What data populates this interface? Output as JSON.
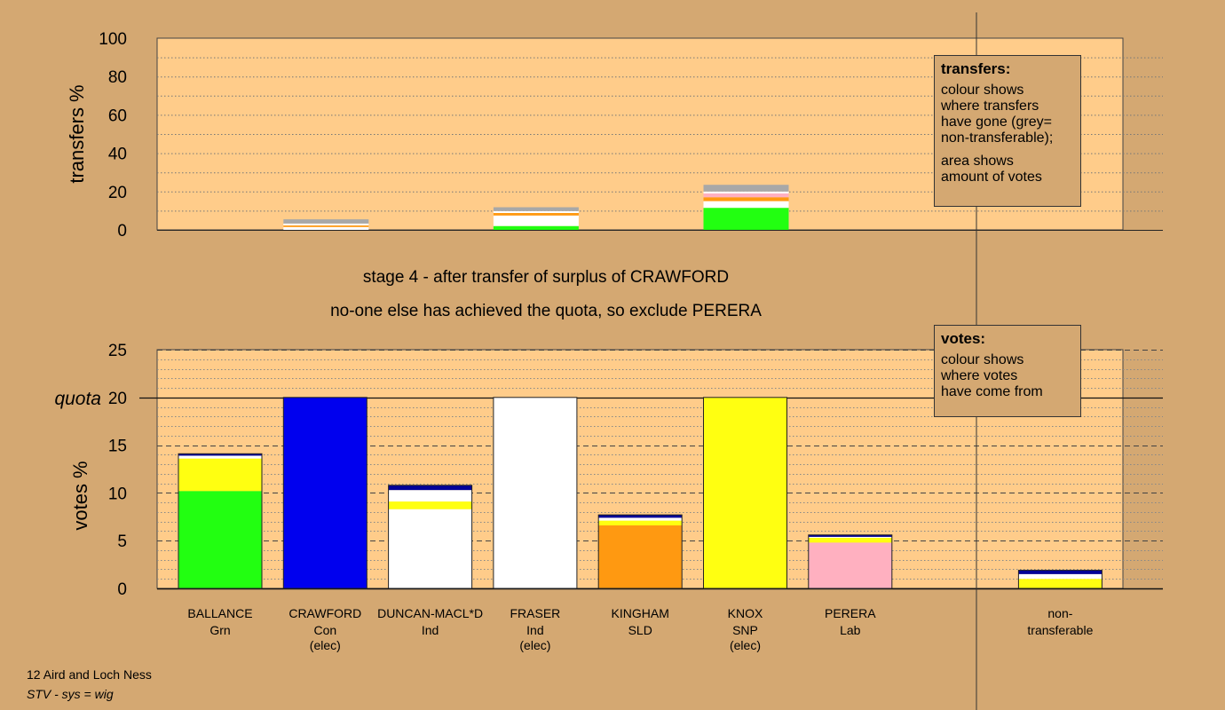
{
  "chart_data": {
    "type": "bar",
    "stage_line1": "stage 4 - after transfer of surplus of CRAWFORD",
    "stage_line2": "no-one else has achieved the quota, so exclude PERERA",
    "colors": {
      "background": "#d4a872",
      "plot": "#ffcc8a",
      "green": "#22ff11",
      "blue": "#0000ee",
      "white": "#ffffff",
      "yellow": "#ffff11",
      "orange": "#ff9911",
      "pink": "#ffb0c0",
      "navy": "#000099",
      "grey": "#a8a8a8"
    },
    "transfers": {
      "ylabel": "transfers %",
      "ylim": [
        0,
        100
      ],
      "yticks": [
        0,
        20,
        40,
        60,
        80,
        100
      ],
      "bars": [
        {
          "slot": 1,
          "segments": [
            {
              "color": "white",
              "value": 1.5
            },
            {
              "color": "orange",
              "value": 0.8
            },
            {
              "color": "white",
              "value": 1.0
            },
            {
              "color": "grey",
              "value": 2.2
            }
          ]
        },
        {
          "slot": 3,
          "segments": [
            {
              "color": "green",
              "value": 2.0
            },
            {
              "color": "white",
              "value": 5.5
            },
            {
              "color": "orange",
              "value": 1.3
            },
            {
              "color": "white",
              "value": 1.0
            },
            {
              "color": "grey",
              "value": 2.0
            }
          ]
        },
        {
          "slot": 5,
          "segments": [
            {
              "color": "green",
              "value": 11.5
            },
            {
              "color": "white",
              "value": 3.5
            },
            {
              "color": "orange",
              "value": 2.0
            },
            {
              "color": "pink",
              "value": 2.0
            },
            {
              "color": "white",
              "value": 1.0
            },
            {
              "color": "grey",
              "value": 3.5
            }
          ]
        }
      ]
    },
    "votes": {
      "ylabel": "votes %",
      "ylim": [
        0,
        25
      ],
      "yticks": [
        0,
        5,
        10,
        15,
        20,
        25
      ],
      "quota": 20,
      "quota_label": "quota",
      "bars": [
        {
          "name": "BALLANCE",
          "party": "Grn",
          "status": "",
          "segments": [
            {
              "color": "green",
              "value": 10.2
            },
            {
              "color": "yellow",
              "value": 3.4
            },
            {
              "color": "white",
              "value": 0.3
            },
            {
              "color": "navy",
              "value": 0.2
            }
          ]
        },
        {
          "name": "CRAWFORD",
          "party": "Con",
          "status": "(elec)",
          "segments": [
            {
              "color": "blue",
              "value": 20
            }
          ]
        },
        {
          "name": "DUNCAN-MACL*D",
          "party": "Ind",
          "status": "",
          "segments": [
            {
              "color": "white",
              "value": 8.3
            },
            {
              "color": "yellow",
              "value": 0.8
            },
            {
              "color": "white",
              "value": 1.2
            },
            {
              "color": "navy",
              "value": 0.5
            }
          ]
        },
        {
          "name": "FRASER",
          "party": "Ind",
          "status": "(elec)",
          "segments": [
            {
              "color": "white",
              "value": 20
            }
          ]
        },
        {
          "name": "KINGHAM",
          "party": "SLD",
          "status": "",
          "segments": [
            {
              "color": "orange",
              "value": 6.6
            },
            {
              "color": "yellow",
              "value": 0.5
            },
            {
              "color": "white",
              "value": 0.3
            },
            {
              "color": "navy",
              "value": 0.3
            }
          ]
        },
        {
          "name": "KNOX",
          "party": "SNP",
          "status": "(elec)",
          "segments": [
            {
              "color": "yellow",
              "value": 20
            }
          ]
        },
        {
          "name": "PERERA",
          "party": "Lab",
          "status": "",
          "segments": [
            {
              "color": "pink",
              "value": 4.8
            },
            {
              "color": "yellow",
              "value": 0.5
            },
            {
              "color": "white",
              "value": 0.1
            },
            {
              "color": "navy",
              "value": 0.2
            }
          ]
        },
        {
          "name": "non-",
          "party": "transferable",
          "status": "",
          "segments": [
            {
              "color": "yellow",
              "value": 1.0
            },
            {
              "color": "white",
              "value": 0.5
            },
            {
              "color": "navy",
              "value": 0.4
            }
          ]
        }
      ]
    }
  },
  "legends": {
    "transfers": {
      "title": "transfers:",
      "line1": "colour shows",
      "line2": "where transfers",
      "line3": "have gone (grey=",
      "line4": "non-transferable);",
      "line5": "area shows",
      "line6": "amount of votes"
    },
    "votes": {
      "title": "votes:",
      "line1": "colour shows",
      "line2": "where votes",
      "line3": "have come from"
    }
  },
  "footer": {
    "ward": "12 Aird and Loch Ness",
    "system": "STV - sys = wig"
  }
}
